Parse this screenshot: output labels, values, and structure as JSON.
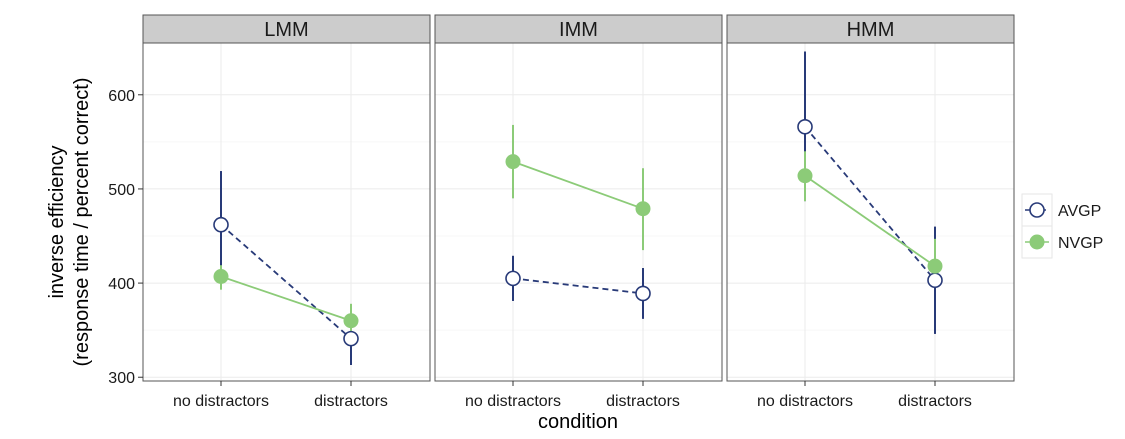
{
  "chart_data": {
    "type": "line",
    "xlabel": "condition",
    "ylabel": [
      "inverse efficiency",
      "(response time / percent correct)"
    ],
    "categories": [
      "no distractors",
      "distractors"
    ],
    "y_ticks": [
      300,
      400,
      500,
      600
    ],
    "ylim": [
      296,
      655
    ],
    "grid": true,
    "legend_position": "right",
    "colors": {
      "AVGP": "#283a78",
      "NVGP": "#8ccb78",
      "panel_border": "#555555",
      "strip_bg": "#cccccc",
      "grid": "#ebebeb"
    },
    "facets": [
      {
        "label": "LMM",
        "series": [
          {
            "name": "AVGP",
            "values": [
              462,
              341
            ],
            "error_low": [
              406,
              313
            ],
            "error_high": [
              519,
              369
            ]
          },
          {
            "name": "NVGP",
            "values": [
              407,
              360
            ],
            "error_low": [
              393,
              342
            ],
            "error_high": [
              419,
              378
            ]
          }
        ]
      },
      {
        "label": "IMM",
        "series": [
          {
            "name": "AVGP",
            "values": [
              405,
              389
            ],
            "error_low": [
              381,
              362
            ],
            "error_high": [
              429,
              416
            ]
          },
          {
            "name": "NVGP",
            "values": [
              529,
              479
            ],
            "error_low": [
              490,
              435
            ],
            "error_high": [
              568,
              522
            ]
          }
        ]
      },
      {
        "label": "HMM",
        "series": [
          {
            "name": "AVGP",
            "values": [
              566,
              403
            ],
            "error_low": [
              487,
              346
            ],
            "error_high": [
              646,
              460
            ]
          },
          {
            "name": "NVGP",
            "values": [
              514,
              418
            ],
            "error_low": [
              487,
              400
            ],
            "error_high": [
              540,
              447
            ]
          }
        ]
      }
    ]
  }
}
